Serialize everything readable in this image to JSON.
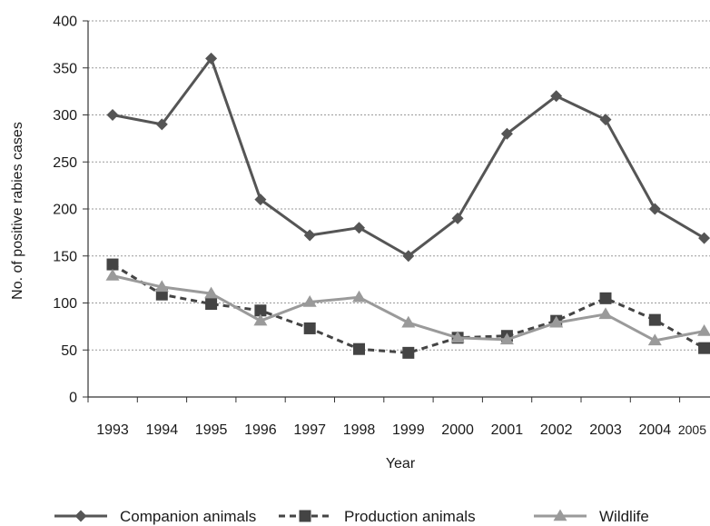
{
  "chart_data": {
    "type": "line",
    "title": "",
    "xlabel": "Year",
    "ylabel": "No. of positive rabies cases",
    "categories": [
      "1993",
      "1994",
      "1995",
      "1996",
      "1997",
      "1998",
      "1999",
      "2000",
      "2001",
      "2002",
      "2003",
      "2004",
      "2005"
    ],
    "ylim": [
      0,
      400
    ],
    "yticks": [
      0,
      50,
      100,
      150,
      200,
      250,
      300,
      350,
      400
    ],
    "grid": "horizontal dotted",
    "legend_position": "bottom",
    "series": [
      {
        "name": "Companion animals",
        "marker": "diamond",
        "line": "solid",
        "color": "#555555",
        "values": [
          300,
          290,
          360,
          210,
          172,
          180,
          150,
          190,
          280,
          320,
          295,
          200,
          169
        ]
      },
      {
        "name": "Production animals",
        "marker": "square",
        "line": "dashed",
        "color": "#444444",
        "values": [
          141,
          109,
          99,
          92,
          73,
          51,
          47,
          63,
          65,
          81,
          105,
          82,
          52
        ]
      },
      {
        "name": "Wildlife",
        "marker": "triangle",
        "line": "solid",
        "color": "#9a9a9a",
        "values": [
          129,
          117,
          110,
          81,
          101,
          106,
          79,
          63,
          61,
          79,
          88,
          60,
          70
        ]
      }
    ]
  }
}
